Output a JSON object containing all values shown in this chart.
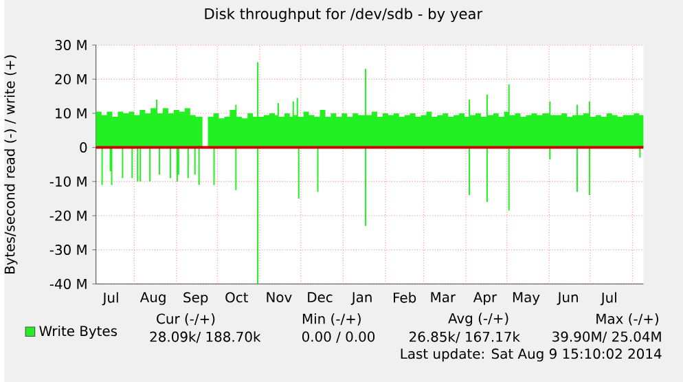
{
  "chart_data": {
    "type": "area",
    "title": "Disk throughput for /dev/sdb - by year",
    "ylabel": "Bytes/second read (-) / write (+)",
    "xlim": [
      "2013-07-04",
      "2014-08-09"
    ],
    "xticks": [
      {
        "value": "2013-07-15",
        "label": "Jul"
      },
      {
        "value": "2013-08-01",
        "label": null
      },
      {
        "value": "2013-08-15",
        "label": "Aug"
      },
      {
        "value": "2013-09-01",
        "label": null
      },
      {
        "value": "2013-09-15",
        "label": "Sep"
      },
      {
        "value": "2013-10-01",
        "label": null
      },
      {
        "value": "2013-10-15",
        "label": "Oct"
      },
      {
        "value": "2013-11-01",
        "label": null
      },
      {
        "value": "2013-11-15",
        "label": "Nov"
      },
      {
        "value": "2013-12-01",
        "label": null
      },
      {
        "value": "2013-12-15",
        "label": "Dec"
      },
      {
        "value": "2014-01-01",
        "label": null
      },
      {
        "value": "2014-01-15",
        "label": "Jan"
      },
      {
        "value": "2014-02-01",
        "label": null
      },
      {
        "value": "2014-02-15",
        "label": "Feb"
      },
      {
        "value": "2014-03-01",
        "label": null
      },
      {
        "value": "2014-03-15",
        "label": "Mar"
      },
      {
        "value": "2014-04-01",
        "label": null
      },
      {
        "value": "2014-04-15",
        "label": "Apr"
      },
      {
        "value": "2014-05-01",
        "label": null
      },
      {
        "value": "2014-05-15",
        "label": "May"
      },
      {
        "value": "2014-06-01",
        "label": null
      },
      {
        "value": "2014-06-15",
        "label": "Jun"
      },
      {
        "value": "2014-07-01",
        "label": null
      },
      {
        "value": "2014-07-15",
        "label": "Jul"
      },
      {
        "value": "2014-08-01",
        "label": null
      }
    ],
    "ylim": [
      -40,
      30
    ],
    "yticks": [
      {
        "value": -40,
        "label": "-40 M"
      },
      {
        "value": -30,
        "label": "-30 M"
      },
      {
        "value": -20,
        "label": "-20 M"
      },
      {
        "value": -10,
        "label": "-10 M"
      },
      0,
      {
        "value": 10,
        "label": "10 M"
      },
      {
        "value": 20,
        "label": "20 M"
      },
      {
        "value": 30,
        "label": "30 M"
      }
    ],
    "grid": true,
    "legend": "bottom left",
    "ref_lines": [
      {
        "axis": "y",
        "value": 0,
        "color": "#cc0000"
      }
    ],
    "series": [
      {
        "name": "Write Bytes",
        "color": "#22f022",
        "x": [
          "2013-07-04",
          "2013-07-08",
          "2013-07-12",
          "2013-07-16",
          "2013-07-20",
          "2013-07-24",
          "2013-07-28",
          "2013-08-01",
          "2013-08-05",
          "2013-08-09",
          "2013-08-13",
          "2013-08-17",
          "2013-08-18",
          "2013-08-22",
          "2013-08-26",
          "2013-08-30",
          "2013-09-03",
          "2013-09-07",
          "2013-09-11",
          "2013-09-15",
          "2013-09-20",
          "2013-09-24",
          "2013-09-28",
          "2013-10-02",
          "2013-10-06",
          "2013-10-10",
          "2013-10-14",
          "2013-10-15",
          "2013-10-19",
          "2013-10-23",
          "2013-10-27",
          "2013-10-30",
          "2013-10-31",
          "2013-11-04",
          "2013-11-08",
          "2013-11-12",
          "2013-11-14",
          "2013-11-15",
          "2013-11-19",
          "2013-11-23",
          "2013-11-25",
          "2013-11-26",
          "2013-11-28",
          "2013-11-29",
          "2013-12-03",
          "2013-12-07",
          "2013-12-11",
          "2013-12-15",
          "2013-12-19",
          "2013-12-23",
          "2013-12-27",
          "2013-12-31",
          "2014-01-04",
          "2014-01-08",
          "2014-01-12",
          "2014-01-17",
          "2014-01-18",
          "2014-01-22",
          "2014-01-26",
          "2014-01-30",
          "2014-02-03",
          "2014-02-07",
          "2014-02-11",
          "2014-02-15",
          "2014-02-19",
          "2014-02-23",
          "2014-02-27",
          "2014-03-03",
          "2014-03-07",
          "2014-03-11",
          "2014-03-15",
          "2014-03-19",
          "2014-03-23",
          "2014-03-27",
          "2014-03-31",
          "2014-04-03",
          "2014-04-04",
          "2014-04-08",
          "2014-04-12",
          "2014-04-16",
          "2014-04-17",
          "2014-04-21",
          "2014-04-25",
          "2014-04-29",
          "2014-05-02",
          "2014-05-03",
          "2014-05-07",
          "2014-05-11",
          "2014-05-15",
          "2014-05-19",
          "2014-05-23",
          "2014-05-27",
          "2014-06-01",
          "2014-06-02",
          "2014-06-06",
          "2014-06-10",
          "2014-06-14",
          "2014-06-18",
          "2014-06-21",
          "2014-06-22",
          "2014-06-26",
          "2014-06-30",
          "2014-07-01",
          "2014-07-05",
          "2014-07-09",
          "2014-07-13",
          "2014-07-17",
          "2014-07-21",
          "2014-07-25",
          "2014-07-29",
          "2014-08-02",
          "2014-08-06",
          "2014-08-09"
        ],
        "values": [
          10.5,
          9.5,
          10.5,
          9,
          10.5,
          10,
          10.5,
          9.5,
          11,
          10,
          11.5,
          14,
          10,
          11.5,
          10,
          11,
          10.5,
          11.5,
          9.5,
          9,
          0,
          9,
          10,
          8.5,
          9,
          11,
          12.5,
          9,
          8.5,
          10,
          9,
          25,
          9,
          9.5,
          10,
          9.5,
          13,
          9,
          10,
          9,
          13.5,
          9.5,
          14.5,
          9,
          10.5,
          9.5,
          9,
          11,
          9,
          10,
          9,
          10,
          9,
          10,
          9.5,
          23,
          9.5,
          10.5,
          9,
          10,
          9.5,
          10,
          9,
          9.5,
          10,
          9,
          9.5,
          10.5,
          9,
          9.5,
          10,
          9,
          9.5,
          10,
          9,
          14,
          9.5,
          10,
          9,
          15.5,
          9.5,
          10,
          9,
          10.5,
          18.5,
          9.5,
          10,
          9,
          9.5,
          10,
          9.5,
          10,
          13.5,
          9.5,
          9.5,
          10,
          9,
          9.5,
          12.5,
          9.5,
          10,
          13.5,
          9,
          9.5,
          9,
          10,
          9.5,
          9,
          9.5,
          9.5,
          10,
          9.5,
          9.5
        ]
      },
      {
        "color": "#22f022",
        "x": [
          "2013-07-04",
          "2013-07-08",
          "2013-07-09",
          "2013-07-14",
          "2013-07-15",
          "2013-07-16",
          "2013-07-23",
          "2013-07-24",
          "2013-07-30",
          "2013-07-31",
          "2013-08-03",
          "2013-08-04",
          "2013-08-05",
          "2013-08-06",
          "2013-08-12",
          "2013-08-13",
          "2013-08-19",
          "2013-08-20",
          "2013-08-27",
          "2013-08-28",
          "2013-09-01",
          "2013-09-02",
          "2013-09-03",
          "2013-09-09",
          "2013-09-10",
          "2013-09-14",
          "2013-09-15",
          "2013-09-17",
          "2013-09-18",
          "2013-09-28",
          "2013-09-29",
          "2013-10-14",
          "2013-10-15",
          "2013-10-30",
          "2013-10-31",
          "2013-11-29",
          "2013-11-30",
          "2013-12-13",
          "2013-12-14",
          "2014-01-17",
          "2014-01-18",
          "2014-04-03",
          "2014-04-04",
          "2014-04-16",
          "2014-04-17",
          "2014-05-02",
          "2014-05-03",
          "2014-06-01",
          "2014-06-02",
          "2014-06-21",
          "2014-06-22",
          "2014-06-30",
          "2014-07-01",
          "2014-08-06",
          "2014-08-07",
          "2014-08-09"
        ],
        "values": [
          0,
          -11,
          0,
          -7,
          -11,
          0,
          -9,
          0,
          -9,
          0,
          -10,
          0,
          -10,
          0,
          -10,
          0,
          -8,
          0,
          -9,
          0,
          -10,
          -8,
          0,
          -9,
          0,
          -8,
          0,
          -11,
          0,
          -11,
          0,
          -12.5,
          0,
          -40,
          0,
          -15,
          0,
          -13,
          0,
          -23,
          0,
          -14,
          0,
          -16,
          0,
          -18.5,
          0,
          -3.5,
          0,
          -13,
          0,
          -14,
          0,
          -3,
          0,
          0
        ]
      }
    ],
    "annotations": [
      "Cur (-/+)",
      "Min (-/+)",
      "Avg (-/+)",
      "Max (-/+)",
      "28.09k/  188.70k",
      "0.00 /    0.00",
      "26.85k/  167.17k",
      "39.90M/  25.04M",
      "Last update: Sat Aug  9 15:10:02 2014"
    ]
  }
}
